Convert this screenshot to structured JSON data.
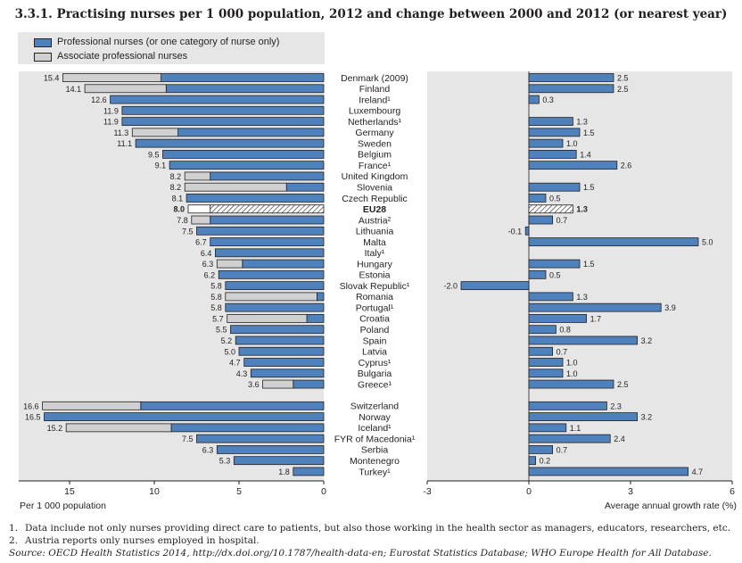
{
  "title": "3.3.1. Practising nurses per 1 000 population, 2012 and change between 2000 and 2012 (or nearest year)",
  "legend": {
    "professional": "Professional nurses (or one category of nurse only)",
    "associate": "Associate professional nurses"
  },
  "colors": {
    "professional": "#4f81bd",
    "associate": "#d0d0d0",
    "panel_bg": "#e6e6e6",
    "bar_border": "#222222"
  },
  "chart_data": [
    {
      "type": "bar",
      "orientation": "horizontal",
      "stacked": true,
      "xlabel": "Per 1 000 population",
      "xlim": [
        18,
        0
      ],
      "x_ticks": [
        "15",
        "10",
        "5",
        "0"
      ],
      "legend_position": "top-left",
      "grid": false,
      "categories": [
        "Denmark (2009)",
        "Finland",
        "Ireland¹",
        "Luxembourg",
        "Netherlands¹",
        "Germany",
        "Sweden",
        "Belgium",
        "France¹",
        "United Kingdom",
        "Slovenia",
        "Czech Republic",
        "EU28",
        "Austria²",
        "Lithuania",
        "Malta",
        "Italy¹",
        "Hungary",
        "Estonia",
        "Slovak Republic¹",
        "Romania",
        "Portugal¹",
        "Croatia",
        "Poland",
        "Spain",
        "Latvia",
        "Cyprus¹",
        "Bulgaria",
        "Greece¹",
        "Switzerland",
        "Norway",
        "Iceland¹",
        "FYR of Macedonia¹",
        "Serbia",
        "Montenegro",
        "Turkey¹"
      ],
      "series": [
        {
          "name": "Professional nurses (or one category of nurse only)",
          "values": [
            9.6,
            9.3,
            12.6,
            11.9,
            11.9,
            8.6,
            11.1,
            9.5,
            9.1,
            6.7,
            2.2,
            8.1,
            6.7,
            6.7,
            7.5,
            6.7,
            6.4,
            4.8,
            6.2,
            5.8,
            0.4,
            5.8,
            1.0,
            5.5,
            5.2,
            5.0,
            4.7,
            4.3,
            1.8,
            10.8,
            16.5,
            9.0,
            7.5,
            6.3,
            5.3,
            1.8
          ]
        },
        {
          "name": "Associate professional nurses",
          "values": [
            5.8,
            4.8,
            0,
            0,
            0,
            2.7,
            0,
            0,
            0,
            1.5,
            6.0,
            0,
            1.3,
            1.1,
            0,
            0,
            0,
            1.5,
            0,
            0,
            5.4,
            0,
            4.7,
            0,
            0,
            0,
            0,
            0,
            1.8,
            5.8,
            0,
            6.2,
            0,
            0,
            0,
            0
          ]
        }
      ],
      "totals": [
        "15.4",
        "14.1",
        "12.6",
        "11.9",
        "11.9",
        "11.3",
        "11.1",
        "9.5",
        "9.1",
        "8.2",
        "8.2",
        "8.1",
        "8.0",
        "7.8",
        "7.5",
        "6.7",
        "6.4",
        "6.3",
        "6.2",
        "5.8",
        "5.8",
        "5.8",
        "5.7",
        "5.5",
        "5.2",
        "5.0",
        "4.7",
        "4.3",
        "3.6",
        "16.6",
        "16.5",
        "15.2",
        "7.5",
        "6.3",
        "5.3",
        "1.8"
      ],
      "highlight": "EU28"
    },
    {
      "type": "bar",
      "orientation": "horizontal",
      "xlabel": "Average annual growth rate (%)",
      "xlim": [
        -3,
        6
      ],
      "x_ticks": [
        "-3",
        "0",
        "3",
        "6"
      ],
      "grid": false,
      "categories": [
        "Denmark (2009)",
        "Finland",
        "Ireland¹",
        "Luxembourg",
        "Netherlands¹",
        "Germany",
        "Sweden",
        "Belgium",
        "France¹",
        "United Kingdom",
        "Slovenia",
        "Czech Republic",
        "EU28",
        "Austria²",
        "Lithuania",
        "Malta",
        "Italy¹",
        "Hungary",
        "Estonia",
        "Slovak Republic¹",
        "Romania",
        "Portugal¹",
        "Croatia",
        "Poland",
        "Spain",
        "Latvia",
        "Cyprus¹",
        "Bulgaria",
        "Greece¹",
        "Switzerland",
        "Norway",
        "Iceland¹",
        "FYR of Macedonia¹",
        "Serbia",
        "Montenegro",
        "Turkey¹"
      ],
      "values": [
        2.5,
        2.5,
        0.3,
        null,
        1.3,
        1.5,
        1.0,
        1.4,
        2.6,
        null,
        1.5,
        0.5,
        1.3,
        0.7,
        -0.1,
        5.0,
        null,
        1.5,
        0.5,
        -2.0,
        1.3,
        3.9,
        1.7,
        0.8,
        3.2,
        0.7,
        1.0,
        1.0,
        2.5,
        2.3,
        3.2,
        1.1,
        2.4,
        0.7,
        0.2,
        4.7
      ],
      "labels": [
        "2.5",
        "2.5",
        "0.3",
        "",
        "1.3",
        "1.5",
        "1.0",
        "1.4",
        "2.6",
        "",
        "1.5",
        "0.5",
        "1.3",
        "0.7",
        "-0.1",
        "5.0",
        "",
        "1.5",
        "0.5",
        "-2.0",
        "1.3",
        "3.9",
        "1.7",
        "0.8",
        "3.2",
        "0.7",
        "1.0",
        "1.0",
        "2.5",
        "2.3",
        "3.2",
        "1.1",
        "2.4",
        "0.7",
        "0.2",
        "4.7"
      ],
      "highlight": "EU28"
    }
  ],
  "footnotes": [
    {
      "num": "1.",
      "text": "Data include not only nurses providing direct care to patients, but also those working in the health sector as managers, educators, researchers, etc."
    },
    {
      "num": "2.",
      "text": "Austria reports only nurses employed in hospital."
    }
  ],
  "source": {
    "label": "Source:",
    "text": "OECD Health Statistics 2014, http://dx.doi.org/10.1787/health-data-en; Eurostat Statistics Database; WHO Europe Health for All Database."
  }
}
